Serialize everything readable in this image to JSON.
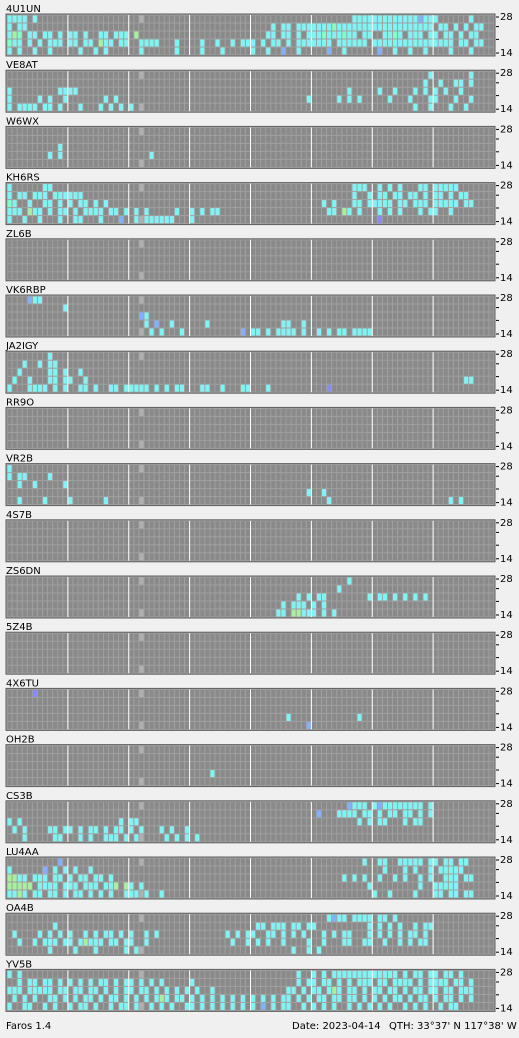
{
  "app": {
    "name": "Faros 1.4",
    "date": "Date: 2023-04-14",
    "qth": "QTH: 33°37' N  117°38' W",
    "band_top": "28",
    "band_bottom": "14",
    "stations": [
      {
        "call": "4U1UN",
        "rows": [
          "cccc.c..............................................................cccccccccccccbccc......c",
          "c.cc................................................c.cc.ccccccctccccccccccccccccccc.cc.c.c.cc",
          "cgt.cc.cc.c.cc.c..cc.ccc.g.........................cc.cc.c.ccctccctcc.cc..cctc.ccc.cc.cc.c.cc",
          "tcc.c.c.ccc.cc.cc.gcc.cc..cccc...c....c..c..c.ccc.c.cc.c.ccccccc.cccccc.cccccccccccccccc.cc.cc",
          "c.c..c..c.....c..c.c......c......c....c...c.....c..c..b..c.....b..c......b..c..c..c....c...c"
        ]
      },
      {
        "call": "VE8AT",
        "rows": [
          "...................................................................................c.......c",
          "..................................................................................c..c..cc.c",
          "c.........cccc.....................................................c.....c..c...c.c.c.c..c",
          "c.....c.c..c.......c.c.....................................c.....c.c.c.....c...c...cc...c..c",
          "c.cccc.cc.c...c...c.c.c.c.......................................................c..c...c..c"
        ]
      },
      {
        "call": "W6WX",
        "rows": [
          ".",
          ".",
          "..........c",
          "........c.c.................c",
          "."
        ]
      },
      {
        "call": "KH6RS",
        "rows": [
          "c......cc...........................................................ccc..c.c.c...cc.ccccc",
          "c.cc.ccc.cccccc.....................................................c..c.cc.cc.cc.c.cc.c.cc",
          "tc..c..cc.c.c.cc.c.c..........................................c.c...cc.ccccc.cc.ccc.ccccc.cc",
          "ccc.gcc.c.cc.c.cccc.cc.c.c.c.....c..c.c.cc.....................cc.gc.c...c.c.c...c.cc..c",
          "c..c..c...c..cc...c...b..c.cccccc...c....................................p"
        ]
      },
      {
        "call": "ZL6B",
        "rows": [
          ".",
          ".",
          ".",
          ".",
          "."
        ]
      },
      {
        "call": "VK6RBP",
        "rows": [
          "....bcc",
          "...........c",
          "..........................bc",
          "...........................c.b..c......c..............cc..c",
          "............................c.c...c...........b.cc.c.cccc.c..c.c.cc.cccc"
        ]
      },
      {
        "call": "JA2IGY",
        "rows": [
          "........c",
          "...c..c.cc",
          "..c.....cc.c..c",
          ".c..c...cc.cc..c..........................................................................cc",
          "c...cccc.c.c..cc.c..cc.ccccc.c.c.cc...cc..c...cc...c...........p"
        ]
      },
      {
        "call": "RR9O",
        "rows": [
          ".",
          ".",
          ".",
          ".",
          "."
        ]
      },
      {
        "call": "VR2B",
        "rows": [
          "c",
          "c.cc....c",
          "..c..c.....c..........................................................................",
          "...........................................................c..c",
          "..c....c....c......c...........................................c.......................c.c"
        ]
      },
      {
        "call": "4S7B",
        "rows": [
          ".",
          ".",
          ".",
          ".",
          "."
        ]
      },
      {
        "call": "ZS6DN",
        "rows": [
          "...................................................................c",
          ".................................................................c",
          ".........................................................c.c.cc........c.cc.c.c.c.c",
          "......................................................c.ccc.c.c",
          ".....................................................cc.ggccc.c.c"
        ]
      },
      {
        "call": "5Z4B",
        "rows": [
          ".",
          ".",
          ".",
          ".",
          "."
        ]
      },
      {
        "call": "4X6TU",
        "rows": [
          ".....p",
          ".",
          ".",
          ".......................................................c.............c",
          "...........................................................b"
        ]
      },
      {
        "call": "OH2B",
        "rows": [
          ".",
          ".",
          ".",
          "........................................c",
          "."
        ]
      },
      {
        "call": "CS3B",
        "rows": [
          "...................................................................bccc.cbcccccccc.c",
          ".............................................................b...cccc.cc.c.cc.cc.c.c",
          "c.c...................c.cc...........................................c.c.cc...c.cc",
          ".c.c....cc.cc.c.cc.c.cc.c.c...c.c..c",
          "...c.....cc...c.c..ccc.c.c.....c.c.c.c"
        ]
      },
      {
        "call": "LU4AA",
        "rows": [
          "..........b...........................................................c..cc..ccccc.cc.cc.cc",
          "c......b.c.c.c..c.........................................................c...c.c..c.ccccc",
          "ggcc.ccc.cc.c.cc.cc.c.............................................c.c.c..c..c.c..c.c..ccc.cc",
          "ggggg.cccc.ccc.ccc.ccg.gc.c............................................c.........c..ccccc",
          "ccgc.cc.cc.c.cc.c.c.c..ccc.c..c.........................................c..c....c...cc.cc.cc"
        ]
      },
      {
        "call": "OA4B",
        "rows": [
          "...............................................................cbcc.cccc.cc.c",
          ".........c.......................................cc.ccc.cc.cc..........c.c.c.c..c.cc",
          ".c....c.c.c.c..c.c.cc.c.c..c.c.............c.c.cc..cc.c.c.c...c.c.cc...c.c.c.c.cc.c",
          "..c..c.ccc.cc.cgccc.cc.cc..c................c..c.c.c..c....c..c...cc..cc..c..c.c.cc",
          "........c....c...c.....c.c..............................c..c.c"
        ]
      },
      {
        "call": "YV5B",
        "rows": [
          "c.c......................................................c..c.c.ccccccccccccc.c.cc.cc.cc.c",
          "..c.cc.cc.c.c.c.c.cc.c.cc.c.c.c.....c....................c.cc.cc.c.c.ccc.cc.cccc.c.cccc.cc.c",
          "ccc.ccccc.cc.cc.cc.c.c.cc.cc.c.c.c.c.c..c..............cc.c.cc.cgc.cc.c.cc.cc.c.cc.cc.cc.ccc",
          ".c.c.c..cc.c.c.cc.c.cc.c.c.c.cgc.cc.c.c.c.c.c.c.c.c.c.cc.c.c.cc.cc.cc.c.c.c.cc.c.cc.c.cc.c.c",
          "c..cc..c.c..c.cc.c..c.cc.c..c.c.c..cc.c.c.c.c.c.c.b.c.cc..c.c.c.c..c.c.c.c.c..c.c.c..c.cc"
        ]
      }
    ]
  }
}
